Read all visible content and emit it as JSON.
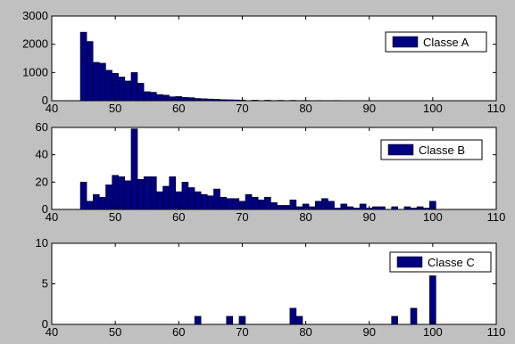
{
  "colors": {
    "figure_bg": "#c0c0c0",
    "axes_bg": "#ffffff",
    "bar_fill": "#000080",
    "bar_edge": "#000000"
  },
  "chart_data": [
    {
      "type": "bar",
      "series": [
        {
          "name": "Classe A",
          "x": [
            45,
            46,
            47,
            48,
            49,
            50,
            51,
            52,
            53,
            54,
            55,
            56,
            57,
            58,
            59,
            60,
            61,
            62,
            63,
            64,
            65,
            66,
            67,
            68,
            69,
            70,
            72,
            74,
            76,
            78,
            80,
            82,
            85,
            88,
            90,
            92,
            95,
            97,
            100
          ],
          "values": [
            2430,
            2100,
            1360,
            1330,
            1080,
            970,
            840,
            700,
            1000,
            620,
            320,
            300,
            220,
            200,
            140,
            150,
            120,
            110,
            80,
            70,
            60,
            50,
            40,
            35,
            30,
            25,
            20,
            18,
            15,
            15,
            12,
            10,
            10,
            8,
            8,
            6,
            5,
            5,
            5
          ]
        }
      ],
      "xlim": [
        40,
        110
      ],
      "ylim": [
        0,
        3000
      ],
      "xticks": [
        "40",
        "50",
        "60",
        "70",
        "80",
        "90",
        "100",
        "110"
      ],
      "yticks": [
        "0",
        "1000",
        "2000",
        "3000"
      ],
      "legend": "top-right"
    },
    {
      "type": "bar",
      "series": [
        {
          "name": "Classe B",
          "x": [
            45,
            46,
            47,
            48,
            49,
            50,
            51,
            52,
            53,
            54,
            55,
            56,
            57,
            58,
            59,
            60,
            61,
            62,
            63,
            64,
            65,
            66,
            67,
            68,
            69,
            70,
            71,
            72,
            73,
            74,
            75,
            76,
            77,
            78,
            79,
            80,
            81,
            82,
            83,
            84,
            85,
            86,
            87,
            88,
            89,
            90,
            91,
            92,
            93,
            94,
            95,
            96,
            97,
            98,
            99,
            100
          ],
          "values": [
            20,
            6,
            11,
            9,
            18,
            25,
            24,
            21,
            59,
            22,
            24,
            24,
            13,
            17,
            24,
            13,
            20,
            16,
            13,
            11,
            10,
            15,
            9,
            8,
            8,
            6,
            11,
            9,
            7,
            9,
            5,
            3,
            3,
            7,
            2,
            4,
            2,
            6,
            8,
            6,
            1,
            4,
            2,
            1,
            4,
            1,
            2,
            2,
            0,
            2,
            0,
            2,
            1,
            2,
            1,
            6
          ]
        }
      ],
      "xlim": [
        40,
        110
      ],
      "ylim": [
        0,
        60
      ],
      "xticks": [
        "40",
        "50",
        "60",
        "70",
        "80",
        "90",
        "100",
        "110"
      ],
      "yticks": [
        "0",
        "20",
        "40",
        "60"
      ],
      "legend": "top-right"
    },
    {
      "type": "bar",
      "series": [
        {
          "name": "Classe C",
          "x": [
            63,
            68,
            70,
            78,
            79,
            94,
            97,
            100
          ],
          "values": [
            1,
            1,
            1,
            2,
            1,
            1,
            2,
            6
          ]
        }
      ],
      "xlim": [
        40,
        110
      ],
      "ylim": [
        0,
        10
      ],
      "xticks": [
        "40",
        "50",
        "60",
        "70",
        "80",
        "90",
        "100",
        "110"
      ],
      "yticks": [
        "0",
        "5",
        "10"
      ],
      "legend": "top-right"
    }
  ]
}
